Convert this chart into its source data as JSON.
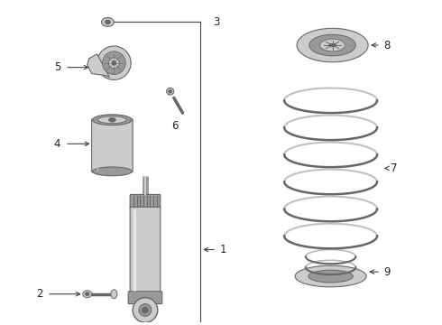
{
  "bg_color": "#ffffff",
  "line_color": "#222222",
  "part_color": "#666666",
  "part_light": "#999999",
  "part_lighter": "#cccccc",
  "label_fontsize": 8.5,
  "callout_line_color": "#444444",
  "figsize": [
    4.9,
    3.6
  ],
  "dpi": 100
}
